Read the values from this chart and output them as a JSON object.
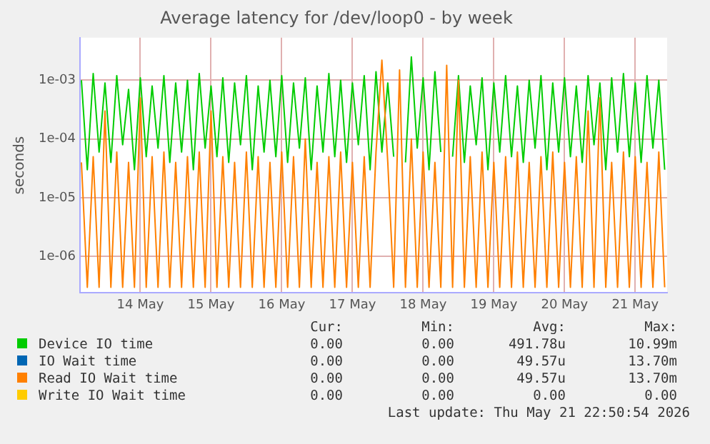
{
  "chart_data": {
    "type": "line",
    "title": "Average latency for /dev/loop0 - by week",
    "ylabel": "seconds",
    "log": true,
    "grid": true,
    "legend": "bottom",
    "marker": "none",
    "line_style": "solid",
    "ylim": [
      2.4e-07,
      0.0053
    ],
    "yticks": [
      {
        "value": 1e-06,
        "label": "1e-06"
      },
      {
        "value": 1e-05,
        "label": "1e-05"
      },
      {
        "value": 0.0001,
        "label": "1e-04"
      },
      {
        "value": 0.001,
        "label": "1e-03"
      }
    ],
    "xlim": [
      "2026-05-13T15:30",
      "2026-05-21T22:50"
    ],
    "xticks": [
      {
        "value": "2026-05-14T12:00",
        "label": "14 May"
      },
      {
        "value": "2026-05-15T12:00",
        "label": "15 May"
      },
      {
        "value": "2026-05-16T12:00",
        "label": "16 May"
      },
      {
        "value": "2026-05-17T12:00",
        "label": "17 May"
      },
      {
        "value": "2026-05-18T12:00",
        "label": "18 May"
      },
      {
        "value": "2026-05-19T12:00",
        "label": "19 May"
      },
      {
        "value": "2026-05-20T12:00",
        "label": "20 May"
      },
      {
        "value": "2026-05-21T12:00",
        "label": "21 May"
      }
    ],
    "x": [
      "2026-05-13T16:00",
      "2026-05-13T18:00",
      "2026-05-13T20:00",
      "2026-05-13T22:00",
      "2026-05-14T00:00",
      "2026-05-14T02:00",
      "2026-05-14T04:00",
      "2026-05-14T06:00",
      "2026-05-14T08:00",
      "2026-05-14T10:00",
      "2026-05-14T12:00",
      "2026-05-14T14:00",
      "2026-05-14T16:00",
      "2026-05-14T18:00",
      "2026-05-14T20:00",
      "2026-05-14T22:00",
      "2026-05-15T00:00",
      "2026-05-15T02:00",
      "2026-05-15T04:00",
      "2026-05-15T06:00",
      "2026-05-15T08:00",
      "2026-05-15T10:00",
      "2026-05-15T12:00",
      "2026-05-15T14:00",
      "2026-05-15T16:00",
      "2026-05-15T18:00",
      "2026-05-15T20:00",
      "2026-05-15T22:00",
      "2026-05-16T00:00",
      "2026-05-16T02:00",
      "2026-05-16T04:00",
      "2026-05-16T06:00",
      "2026-05-16T08:00",
      "2026-05-16T10:00",
      "2026-05-16T12:00",
      "2026-05-16T14:00",
      "2026-05-16T16:00",
      "2026-05-16T18:00",
      "2026-05-16T20:00",
      "2026-05-16T22:00",
      "2026-05-17T00:00",
      "2026-05-17T02:00",
      "2026-05-17T04:00",
      "2026-05-17T06:00",
      "2026-05-17T08:00",
      "2026-05-17T10:00",
      "2026-05-17T12:00",
      "2026-05-17T14:00",
      "2026-05-17T16:00",
      "2026-05-17T18:00",
      "2026-05-17T20:00",
      "2026-05-17T22:00",
      "2026-05-18T00:00",
      "2026-05-18T02:00",
      "2026-05-18T04:00",
      "2026-05-18T06:00",
      "2026-05-18T08:00",
      "2026-05-18T10:00",
      "2026-05-18T12:00",
      "2026-05-18T14:00",
      "2026-05-18T16:00",
      "2026-05-18T18:00",
      "2026-05-18T20:00",
      "2026-05-18T22:00",
      "2026-05-19T00:00",
      "2026-05-19T02:00",
      "2026-05-19T04:00",
      "2026-05-19T06:00",
      "2026-05-19T08:00",
      "2026-05-19T10:00",
      "2026-05-19T12:00",
      "2026-05-19T14:00",
      "2026-05-19T16:00",
      "2026-05-19T18:00",
      "2026-05-19T20:00",
      "2026-05-19T22:00",
      "2026-05-20T00:00",
      "2026-05-20T02:00",
      "2026-05-20T04:00",
      "2026-05-20T06:00",
      "2026-05-20T08:00",
      "2026-05-20T10:00",
      "2026-05-20T12:00",
      "2026-05-20T14:00",
      "2026-05-20T16:00",
      "2026-05-20T18:00",
      "2026-05-20T20:00",
      "2026-05-20T22:00",
      "2026-05-21T00:00",
      "2026-05-21T02:00",
      "2026-05-21T04:00",
      "2026-05-21T06:00",
      "2026-05-21T08:00",
      "2026-05-21T10:00",
      "2026-05-21T12:00",
      "2026-05-21T14:00",
      "2026-05-21T16:00",
      "2026-05-21T18:00",
      "2026-05-21T20:00",
      "2026-05-21T22:00"
    ],
    "series": [
      {
        "name": "Device IO time",
        "color": "#00cc00",
        "values": [
          0.001,
          3e-05,
          0.0013,
          6e-05,
          0.0009,
          4e-05,
          0.0012,
          8e-05,
          0.0007,
          3e-05,
          0.0011,
          5e-05,
          0.0008,
          7e-05,
          0.0012,
          4e-05,
          0.0009,
          6e-05,
          0.001,
          3e-05,
          0.0013,
          7e-05,
          0.0008,
          5e-05,
          0.0011,
          4e-05,
          0.0009,
          8e-05,
          0.0012,
          3e-05,
          0.0008,
          6e-05,
          0.001,
          5e-05,
          0.0012,
          4e-05,
          0.0009,
          7e-05,
          0.0011,
          3e-05,
          0.0008,
          6e-05,
          0.0013,
          5e-05,
          0.001,
          4e-05,
          0.0009,
          8e-05,
          0.0012,
          3e-05,
          0.0014,
          6e-05,
          0.0009,
          5e-05,
          null,
          4e-05,
          0.0025,
          7e-05,
          0.0011,
          3e-05,
          0.0014,
          6e-05,
          null,
          5e-05,
          0.0012,
          4e-05,
          0.0008,
          8e-05,
          0.0011,
          3e-05,
          0.0009,
          6e-05,
          0.0012,
          5e-05,
          0.0008,
          4e-05,
          0.001,
          7e-05,
          0.0012,
          3e-05,
          0.0009,
          6e-05,
          0.0011,
          5e-05,
          0.0008,
          4e-05,
          0.0012,
          8e-05,
          0.0009,
          3e-05,
          0.0011,
          6e-05,
          0.0013,
          5e-05,
          0.0009,
          4e-05,
          0.0012,
          7e-05,
          0.001,
          3e-05
        ]
      },
      {
        "name": "IO Wait time",
        "color": "#0066b3",
        "values": [
          null,
          null,
          null,
          null,
          null,
          null,
          null,
          null,
          null,
          null,
          null,
          null,
          null,
          null,
          null,
          null,
          null,
          null,
          null,
          null,
          null,
          null,
          null,
          null,
          null,
          null,
          null,
          null,
          null,
          null,
          null,
          null,
          null,
          null,
          null,
          null,
          null,
          null,
          null,
          null,
          null,
          null,
          null,
          null,
          null,
          null,
          null,
          null,
          null,
          null,
          null,
          null,
          null,
          null,
          null,
          null,
          null,
          null,
          null,
          null,
          null,
          null,
          null,
          null,
          null,
          null,
          null,
          null,
          null,
          null,
          null,
          null,
          null,
          null,
          null,
          null,
          null,
          null,
          null,
          null,
          null,
          null,
          null,
          null,
          null,
          null,
          null,
          null,
          null,
          null,
          null,
          null,
          null,
          null,
          null,
          null,
          null,
          null,
          null,
          null
        ]
      },
      {
        "name": "Read IO Wait time",
        "color": "#ff8000",
        "values": [
          4e-05,
          3e-07,
          5e-05,
          3e-07,
          0.0003,
          3e-07,
          6e-05,
          3e-07,
          4e-05,
          3e-07,
          0.0005,
          3e-07,
          5e-05,
          3e-07,
          6e-05,
          3e-07,
          4e-05,
          3e-07,
          5e-05,
          3e-07,
          6e-05,
          3e-07,
          0.0003,
          3e-07,
          5e-05,
          3e-07,
          4e-05,
          3e-07,
          6e-05,
          3e-07,
          5e-05,
          3e-07,
          4e-05,
          3e-07,
          6e-05,
          3e-07,
          5e-05,
          3e-07,
          0.0001,
          3e-07,
          4e-05,
          3e-07,
          5e-05,
          3e-07,
          6e-05,
          3e-07,
          4e-05,
          3e-07,
          5e-05,
          3e-07,
          6e-05,
          0.0022,
          4e-05,
          3e-07,
          0.0015,
          3e-07,
          0.0001,
          3e-07,
          6e-05,
          3e-07,
          4e-05,
          3e-07,
          0.0018,
          3e-07,
          0.001,
          3e-07,
          5e-05,
          3e-07,
          6e-05,
          3e-07,
          4e-05,
          3e-07,
          5e-05,
          3e-07,
          6e-05,
          3e-07,
          4e-05,
          3e-07,
          5e-05,
          3e-07,
          6e-05,
          3e-07,
          4e-05,
          3e-07,
          5e-05,
          3e-07,
          0.0003,
          3e-07,
          0.0005,
          3e-07,
          4e-05,
          3e-07,
          6e-05,
          3e-07,
          5e-05,
          3e-07,
          4e-05,
          3e-07,
          6e-05,
          3e-07
        ]
      },
      {
        "name": "Write IO Wait time",
        "color": "#ffcc00",
        "values": [
          null,
          null,
          null,
          null,
          null,
          null,
          null,
          null,
          null,
          null,
          null,
          null,
          null,
          null,
          null,
          null,
          null,
          null,
          null,
          null,
          null,
          null,
          null,
          null,
          null,
          null,
          null,
          null,
          null,
          null,
          null,
          null,
          null,
          null,
          null,
          null,
          null,
          null,
          null,
          null,
          null,
          null,
          null,
          null,
          null,
          null,
          null,
          null,
          null,
          null,
          null,
          null,
          null,
          null,
          null,
          null,
          null,
          null,
          null,
          null,
          null,
          null,
          null,
          null,
          null,
          null,
          null,
          null,
          null,
          null,
          null,
          null,
          null,
          null,
          null,
          null,
          null,
          null,
          null,
          null,
          null,
          null,
          null,
          null,
          null,
          null,
          null,
          null,
          null,
          null,
          null,
          null,
          null,
          null,
          null,
          null,
          null,
          null,
          null,
          null
        ]
      }
    ],
    "annotations": [
      "Cur:",
      "Min:",
      "Avg:",
      "Max:",
      "0.00",
      "0.00",
      "491.78u",
      "10.99m",
      "0.00",
      "0.00",
      "49.57u",
      "13.70m",
      "0.00",
      "0.00",
      "49.57u",
      "13.70m",
      "0.00",
      "0.00",
      "0.00",
      "0.00",
      "Last update: Thu May 21 22:50:54 2026"
    ]
  }
}
